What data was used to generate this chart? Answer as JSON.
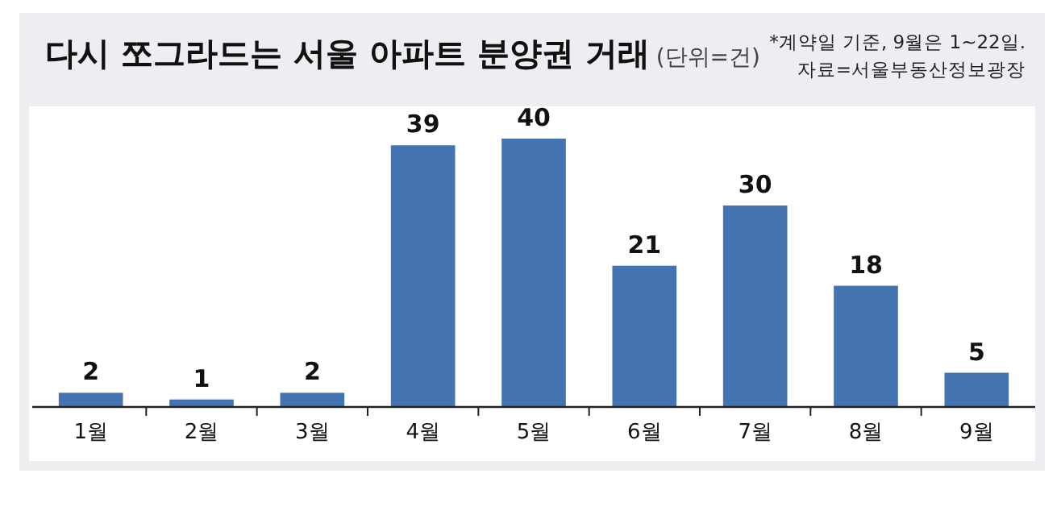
{
  "chart_data": {
    "type": "bar",
    "title": "다시 쪼그라드는 서울 아파트 분양권 거래",
    "subtitle": "(단위=건)",
    "annotations": [
      "*계약일 기준, 9월은 1~22일.",
      "자료=서울부동산정보광장"
    ],
    "categories": [
      "1월",
      "2월",
      "3월",
      "4월",
      "5월",
      "6월",
      "7월",
      "8월",
      "9월"
    ],
    "values": [
      2,
      1,
      2,
      39,
      40,
      21,
      30,
      18,
      5
    ],
    "color": "#4473b2",
    "data_labels": true
  }
}
